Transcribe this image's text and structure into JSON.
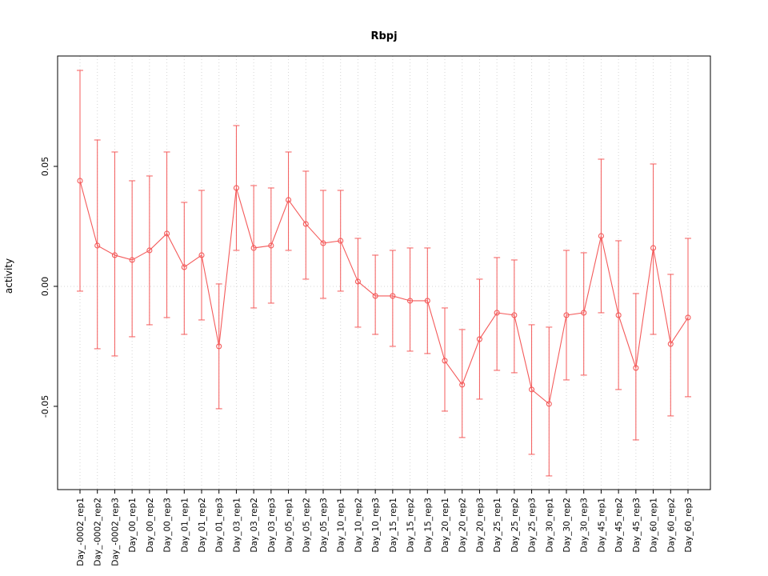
{
  "chart_data": {
    "type": "line",
    "title": "Rbpj",
    "xlabel": "",
    "ylabel": "activity",
    "legend": "none",
    "grid": "dotted vertical line at each category; dotted horizontal line at y=0",
    "marker": "open-circle",
    "error_bars": true,
    "colors": {
      "series": "#f45b5b",
      "grid": "#d6d6d6",
      "box": "#000000",
      "tick_text": "#000000"
    },
    "yticks": [
      -0.05,
      0.0,
      0.05
    ],
    "ylim": [
      -0.0847,
      0.096
    ],
    "categories": [
      "Day_-0002_rep1",
      "Day_-0002_rep2",
      "Day_-0002_rep3",
      "Day_00_rep1",
      "Day_00_rep2",
      "Day_00_rep3",
      "Day_01_rep1",
      "Day_01_rep2",
      "Day_01_rep3",
      "Day_03_rep1",
      "Day_03_rep2",
      "Day_03_rep3",
      "Day_05_rep1",
      "Day_05_rep2",
      "Day_05_rep3",
      "Day_10_rep1",
      "Day_10_rep2",
      "Day_10_rep3",
      "Day_15_rep1",
      "Day_15_rep2",
      "Day_15_rep3",
      "Day_20_rep1",
      "Day_20_rep2",
      "Day_20_rep3",
      "Day_25_rep1",
      "Day_25_rep2",
      "Day_25_rep3",
      "Day_30_rep1",
      "Day_30_rep2",
      "Day_30_rep3",
      "Day_45_rep1",
      "Day_45_rep2",
      "Day_45_rep3",
      "Day_60_rep1",
      "Day_60_rep2",
      "Day_60_rep3"
    ],
    "values": [
      0.044,
      0.017,
      0.013,
      0.011,
      0.015,
      0.022,
      0.008,
      0.013,
      -0.025,
      0.041,
      0.016,
      0.017,
      0.036,
      0.026,
      0.018,
      0.019,
      0.002,
      -0.004,
      -0.004,
      -0.006,
      -0.006,
      -0.031,
      -0.041,
      -0.022,
      -0.011,
      -0.012,
      -0.043,
      -0.049,
      -0.012,
      -0.011,
      0.021,
      -0.012,
      -0.034,
      0.016,
      -0.024,
      -0.013
    ],
    "upper": [
      0.09,
      0.061,
      0.056,
      0.044,
      0.046,
      0.056,
      0.035,
      0.04,
      0.001,
      0.067,
      0.042,
      0.041,
      0.056,
      0.048,
      0.04,
      0.04,
      0.02,
      0.013,
      0.015,
      0.016,
      0.016,
      -0.009,
      -0.018,
      0.003,
      0.012,
      0.011,
      -0.016,
      -0.017,
      0.015,
      0.014,
      0.053,
      0.019,
      -0.003,
      0.051,
      0.005,
      0.02
    ],
    "lower": [
      -0.002,
      -0.026,
      -0.029,
      -0.021,
      -0.016,
      -0.013,
      -0.02,
      -0.014,
      -0.051,
      0.015,
      -0.009,
      -0.007,
      0.015,
      0.003,
      -0.005,
      -0.002,
      -0.017,
      -0.02,
      -0.025,
      -0.027,
      -0.028,
      -0.052,
      -0.063,
      -0.047,
      -0.035,
      -0.036,
      -0.07,
      -0.079,
      -0.039,
      -0.037,
      -0.011,
      -0.043,
      -0.064,
      -0.02,
      -0.054,
      -0.046
    ]
  }
}
